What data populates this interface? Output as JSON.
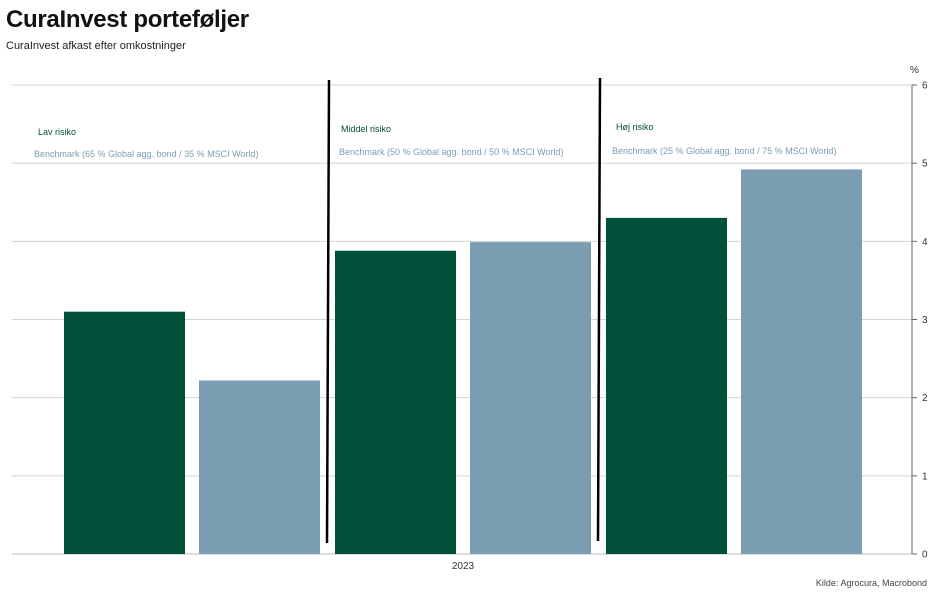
{
  "header": {
    "title": "CuraInvest porteføljer",
    "subtitle": "CuraInvest afkast efter omkostninger"
  },
  "footer": {
    "source": "Kilde: Agrocura, Macrobond"
  },
  "colors": {
    "portfolio": "#00503a",
    "benchmark": "#7a9db2",
    "grid": "#d4d4d4",
    "divider": "#000000"
  },
  "chart_data": {
    "type": "bar",
    "unit": "%",
    "x_label": "2023",
    "ylim": [
      0,
      6
    ],
    "yticks": [
      0,
      1,
      2,
      3,
      4,
      5,
      6
    ],
    "grid": true,
    "y_axis_side": "right",
    "groups": [
      {
        "name": "Lav risiko",
        "benchmark": "Benchmark (65 % Global agg. bond / 35 % MSCI World)",
        "portfolio_value": 3.1,
        "benchmark_value": 2.22
      },
      {
        "name": "Middel risiko",
        "benchmark": "Benchmark (50 % Global agg. bond / 50 % MSCI World)",
        "portfolio_value": 3.88,
        "benchmark_value": 3.99
      },
      {
        "name": "Høj risiko",
        "benchmark": "Benchmark (25 % Global agg. bond / 75 % MSCI World)",
        "portfolio_value": 4.3,
        "benchmark_value": 4.92
      }
    ]
  }
}
